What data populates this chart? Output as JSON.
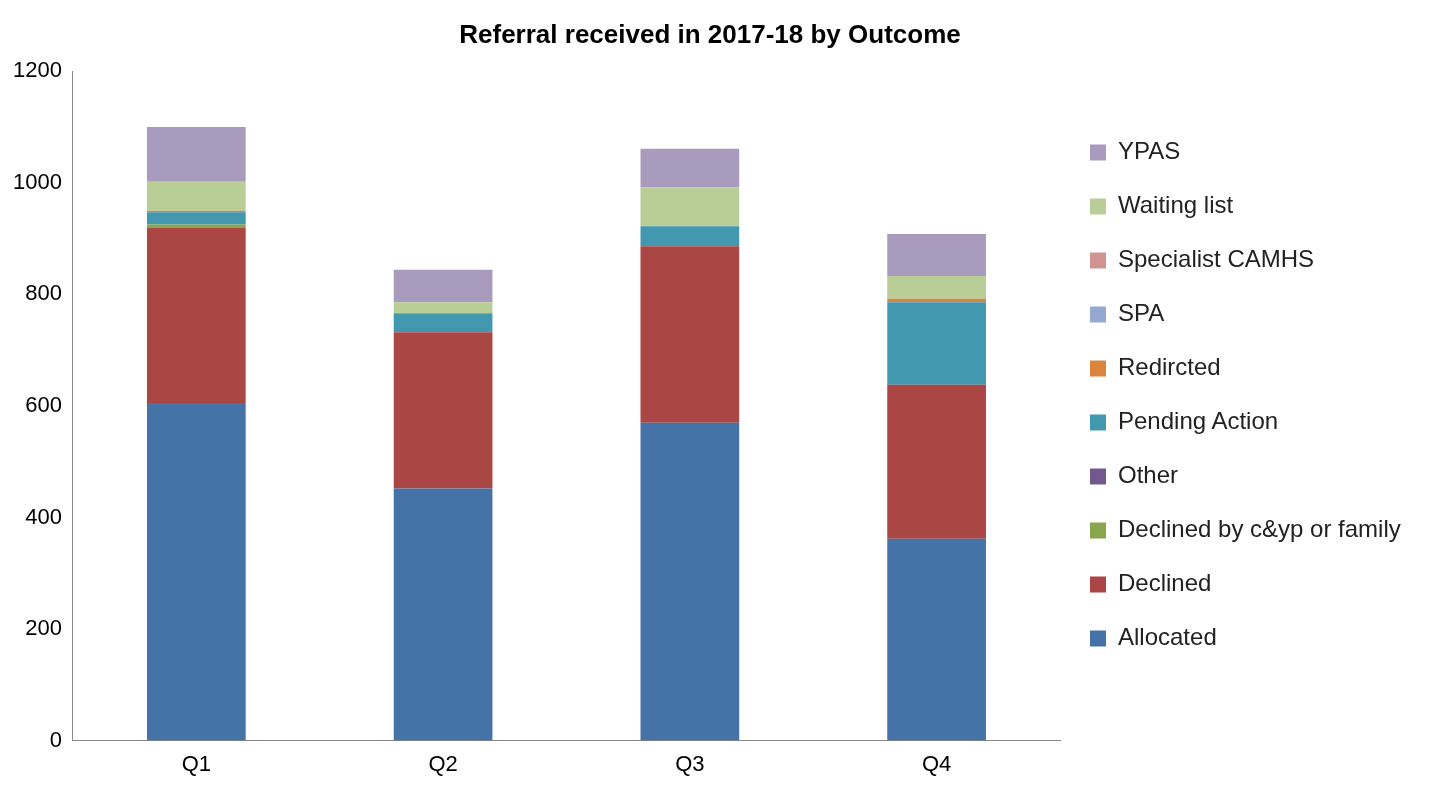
{
  "chart_data": {
    "type": "bar",
    "title": "Referral received in 2017-18 by Outcome",
    "categories": [
      "Q1",
      "Q2",
      "Q3",
      "Q4"
    ],
    "stacked": true,
    "ylim": [
      0,
      1200
    ],
    "yticks": [
      0,
      200,
      400,
      600,
      800,
      1000,
      1200
    ],
    "grid": false,
    "legend": "right",
    "series": [
      {
        "name": "Allocated",
        "color": "#4572a7",
        "values": [
          605,
          452,
          570,
          362
        ]
      },
      {
        "name": "Declined",
        "color": "#aa4643",
        "values": [
          315,
          280,
          316,
          276
        ]
      },
      {
        "name": "Declined by c&yp or family",
        "color": "#89a54e",
        "values": [
          5,
          0,
          0,
          0
        ]
      },
      {
        "name": "Other",
        "color": "#71588f",
        "values": [
          0,
          0,
          0,
          0
        ]
      },
      {
        "name": "Pending Action",
        "color": "#4198af",
        "values": [
          22,
          34,
          36,
          148
        ]
      },
      {
        "name": "Redircted",
        "color": "#db843d",
        "values": [
          3,
          0,
          0,
          6
        ]
      },
      {
        "name": "SPA",
        "color": "#93a9cf",
        "values": [
          0,
          0,
          0,
          0
        ]
      },
      {
        "name": "Specialist CAMHS",
        "color": "#d19392",
        "values": [
          0,
          0,
          0,
          0
        ]
      },
      {
        "name": "Waiting list",
        "color": "#b9cd96",
        "values": [
          52,
          20,
          70,
          41
        ]
      },
      {
        "name": "YPAS",
        "color": "#a99bbd",
        "values": [
          98,
          58,
          69,
          75
        ]
      }
    ]
  }
}
